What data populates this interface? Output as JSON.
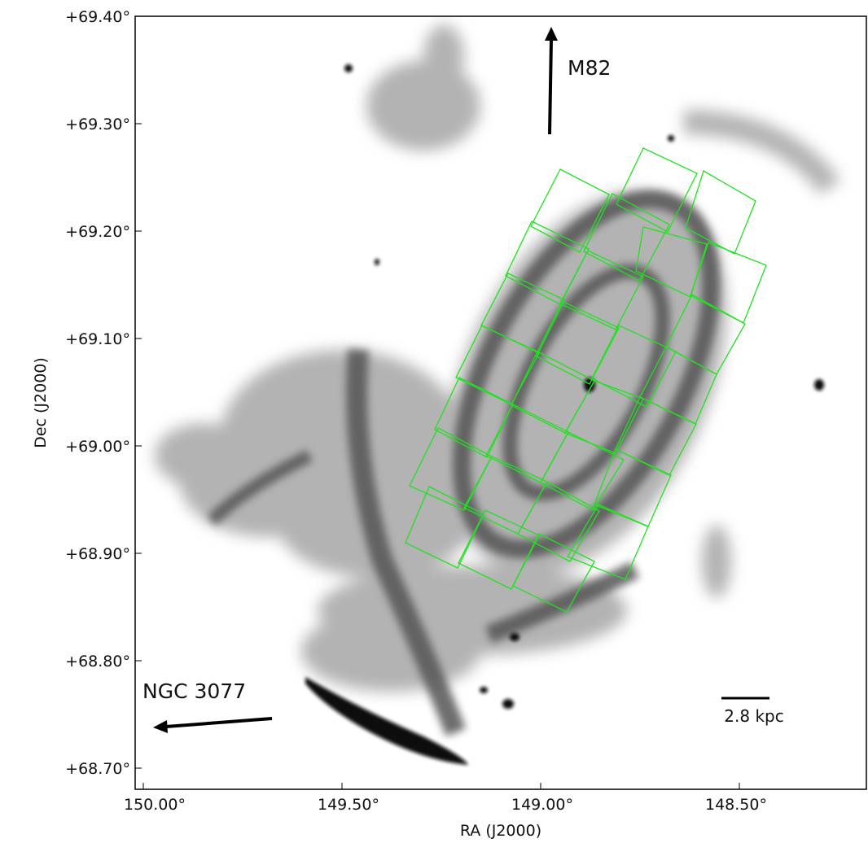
{
  "figure": {
    "xlabel": "RA (J2000)",
    "ylabel": "Dec (J2000)",
    "x_ticks": [
      "150.00°",
      "149.50°",
      "149.00°",
      "148.50°"
    ],
    "y_ticks": [
      "+69.40°",
      "+69.30°",
      "+69.20°",
      "+69.10°",
      "+69.00°",
      "+68.90°",
      "+68.80°",
      "+68.70°"
    ],
    "ra_range_deg": [
      150.0,
      148.2
    ],
    "dec_range_deg": [
      68.68,
      69.4
    ]
  },
  "annotations": {
    "north_label": "M82",
    "west_label": "NGC 3077",
    "scale_bar_label": "2.8 kpc"
  },
  "colors": {
    "footprint": "#22e022",
    "emission": "#2a2a2a",
    "frame": "#000000"
  }
}
